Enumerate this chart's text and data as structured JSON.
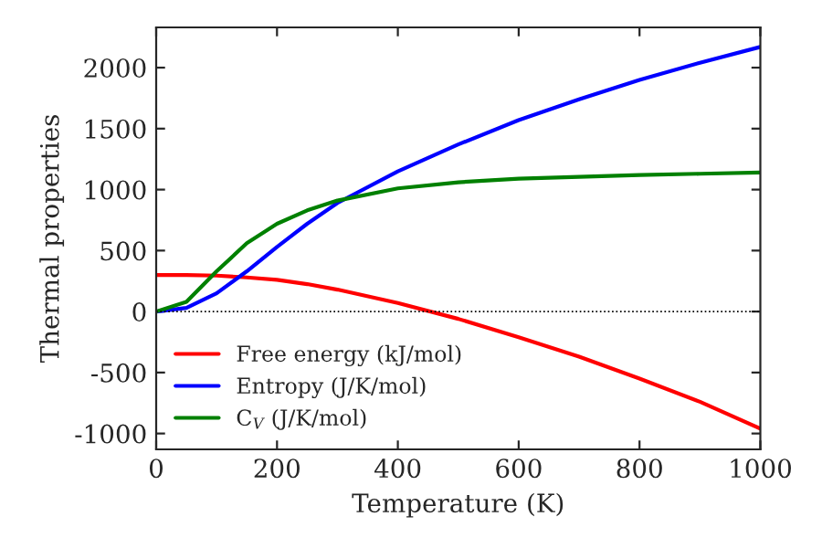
{
  "chart_data": {
    "type": "line",
    "xlabel": "Temperature (K)",
    "ylabel": "Thermal properties",
    "xlim": [
      0,
      1000
    ],
    "xticks": [
      0,
      200,
      400,
      600,
      800,
      1000
    ],
    "ylim": [
      -1130,
      2330
    ],
    "yticks": [
      -1000,
      -500,
      0,
      500,
      1000,
      1500,
      2000
    ],
    "x": [
      0,
      50,
      100,
      150,
      200,
      250,
      300,
      400,
      500,
      600,
      700,
      800,
      900,
      1000
    ],
    "series": [
      {
        "name": "Free energy (kJ/mol)",
        "color": "#ff0000",
        "values": [
          300,
          300,
          295,
          280,
          260,
          225,
          180,
          70,
          -60,
          -210,
          -370,
          -550,
          -740,
          -960
        ]
      },
      {
        "name": "Entropy (J/K/mol)",
        "color": "#0000ff",
        "values": [
          0,
          30,
          150,
          330,
          530,
          720,
          890,
          1150,
          1370,
          1570,
          1740,
          1900,
          2040,
          2170
        ]
      },
      {
        "name": "C$_{V}$ (J/K/mol)",
        "color": "#008000",
        "values": [
          0,
          80,
          330,
          560,
          720,
          830,
          910,
          1010,
          1060,
          1090,
          1105,
          1120,
          1130,
          1140
        ]
      }
    ],
    "ref_lines": [
      {
        "axis": "y",
        "value": 0,
        "color": "#000000",
        "line_style": "dotted"
      }
    ],
    "legend": "bottom left",
    "grid": false,
    "marker": "none",
    "line_style": "solid"
  }
}
